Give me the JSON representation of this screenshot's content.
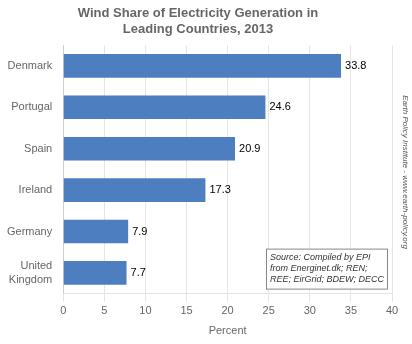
{
  "chart_data": {
    "type": "bar",
    "orientation": "horizontal",
    "title": "Wind Share of Electricity Generation in\nLeading Countries, 2013",
    "categories": [
      "Denmark",
      "Portugal",
      "Spain",
      "Ireland",
      "Germany",
      "United\nKingdom"
    ],
    "values": [
      33.8,
      24.6,
      20.9,
      17.3,
      7.9,
      7.7
    ],
    "color": "#4d7ebf",
    "xlabel": "Percent",
    "xlim": [
      0,
      40
    ],
    "xticks": [
      0,
      5,
      10,
      15,
      20,
      25,
      30,
      35,
      40
    ],
    "grid": true,
    "data_labels": true,
    "annotations": [
      "Source: Compiled by EPI\nfrom Energinet.dk; REN;\nREE; EirGrid; BDEW; DECC",
      "Earth Policy Institute - www.earth-policy.org"
    ]
  }
}
